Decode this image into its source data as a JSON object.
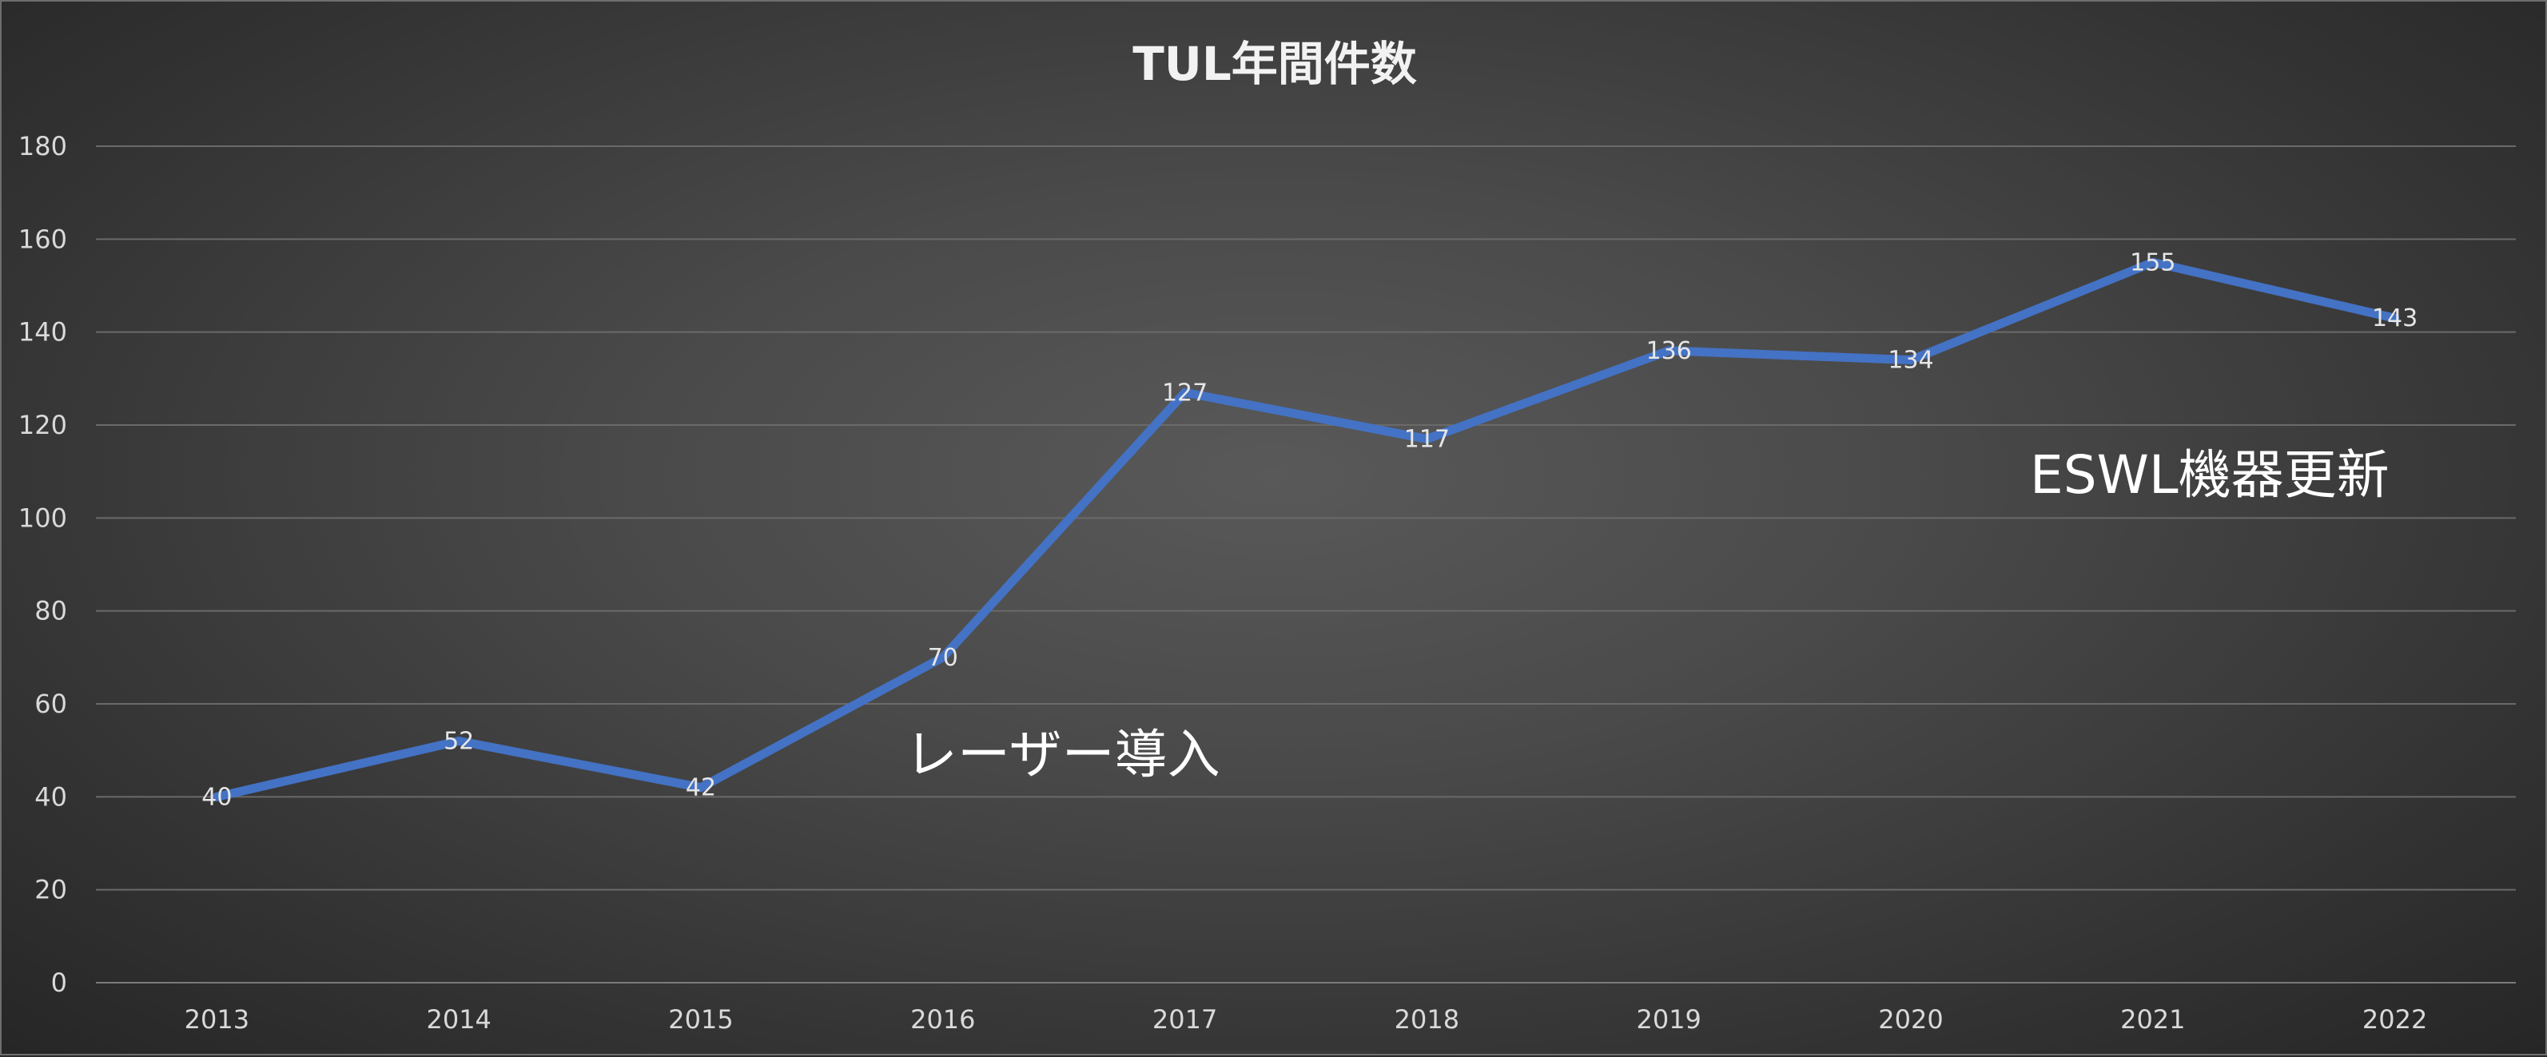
{
  "chart_data": {
    "type": "line",
    "title": "TUL年間件数",
    "xlabel": "",
    "ylabel": "",
    "categories": [
      "2013",
      "2014",
      "2015",
      "2016",
      "2017",
      "2018",
      "2019",
      "2020",
      "2021",
      "2022"
    ],
    "series": [
      {
        "values": [
          40,
          52,
          42,
          70,
          127,
          117,
          136,
          134,
          155,
          143
        ],
        "color": "#4472c4",
        "data_labels": true
      }
    ],
    "ylim": [
      0,
      180
    ],
    "yticks": [
      0,
      20,
      40,
      60,
      80,
      100,
      120,
      140,
      160,
      180
    ],
    "grid": true,
    "legend": "none",
    "annotations": [
      {
        "text": "レーザー導入"
      },
      {
        "text": "ESWL機器更新"
      }
    ]
  }
}
